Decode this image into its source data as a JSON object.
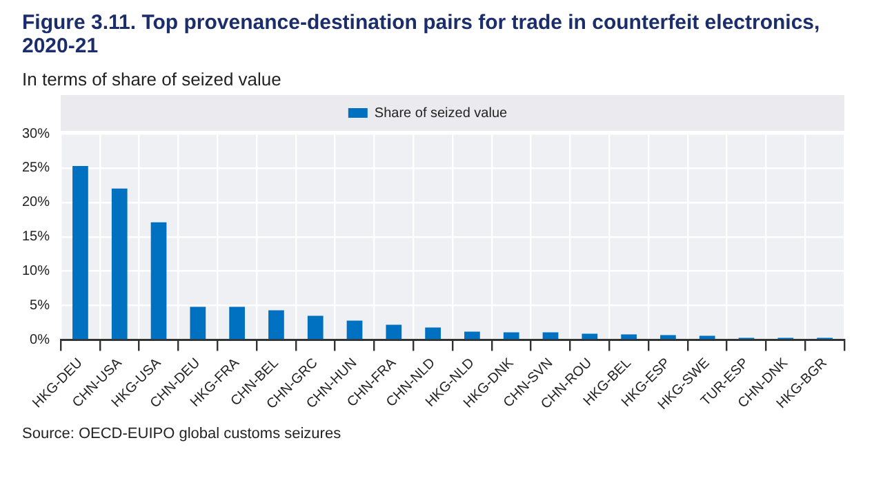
{
  "chart_data": {
    "type": "bar",
    "title": "Figure 3.11. Top provenance-destination pairs for trade in counterfeit electronics, 2020-21",
    "subtitle": "In terms of share of seized value",
    "categories": [
      "HKG-DEU",
      "CHN-USA",
      "HKG-USA",
      "CHN-DEU",
      "HKG-FRA",
      "CHN-BEL",
      "CHN-GRC",
      "CHN-HUN",
      "CHN-FRA",
      "CHN-NLD",
      "HKG-NLD",
      "HKG-DNK",
      "CHN-SVN",
      "CHN-ROU",
      "HKG-BEL",
      "HKG-ESP",
      "HKG-SWE",
      "TUR-ESP",
      "CHN-DNK",
      "HKG-BGR"
    ],
    "series": [
      {
        "name": "Share of seized value",
        "color": "#0070c0",
        "values": [
          25.3,
          22,
          17.1,
          4.8,
          4.8,
          4.3,
          3.5,
          2.8,
          2.2,
          1.8,
          1.2,
          1.1,
          1.1,
          0.9,
          0.8,
          0.7,
          0.6,
          0.3,
          0.3,
          0.3
        ]
      }
    ],
    "ylim": [
      0,
      30
    ],
    "yticks": [
      {
        "value": 0,
        "label": "0%"
      },
      {
        "value": 5,
        "label": "5%"
      },
      {
        "value": 10,
        "label": "10%"
      },
      {
        "value": 15,
        "label": "15%"
      },
      {
        "value": 20,
        "label": "20%"
      },
      {
        "value": 25,
        "label": "25%"
      },
      {
        "value": 30,
        "label": "30%"
      }
    ],
    "grid": true,
    "legend": "top",
    "annotations": [
      "Source: OECD-EUIPO global customs seizures"
    ]
  }
}
